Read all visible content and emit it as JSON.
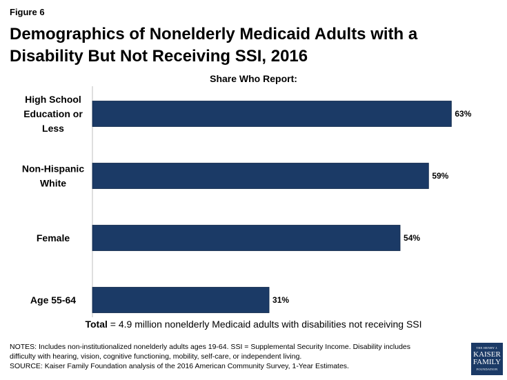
{
  "figure_label": "Figure 6",
  "chart_data": {
    "type": "bar",
    "orientation": "horizontal",
    "title": "Demographics of Nonelderly Medicaid Adults with a Disability But Not Receiving SSI, 2016",
    "subtitle": "Share Who Report:",
    "categories": [
      [
        "High School",
        "Education or",
        "Less"
      ],
      [
        "Non-Hispanic",
        "White"
      ],
      [
        "Female"
      ],
      [
        "Age 55-64"
      ]
    ],
    "values": [
      63,
      59,
      54,
      31
    ],
    "value_labels": [
      "63%",
      "59%",
      "54%",
      "31%"
    ],
    "xlim": [
      0,
      100
    ],
    "unit": "%",
    "color": "#1b3a66",
    "grid": false,
    "legend": "none"
  },
  "total": {
    "prefix": "Total",
    "rest": " = 4.9 million nonelderly Medicaid adults with disabilities not receiving SSI"
  },
  "notes": [
    "NOTES: Includes non-institutionalized nonelderly adults ages 19-64. SSI = Supplemental Security Income. Disability includes",
    "difficulty with hearing, vision, cognitive functioning, mobility, self-care, or independent living.",
    "SOURCE: Kaiser Family Foundation analysis of the 2016 American Community Survey, 1-Year Estimates."
  ],
  "logo": {
    "line1": "THE HENRY J.",
    "line2": "KAISER",
    "line3": "FAMILY",
    "line4": "FOUNDATION"
  }
}
